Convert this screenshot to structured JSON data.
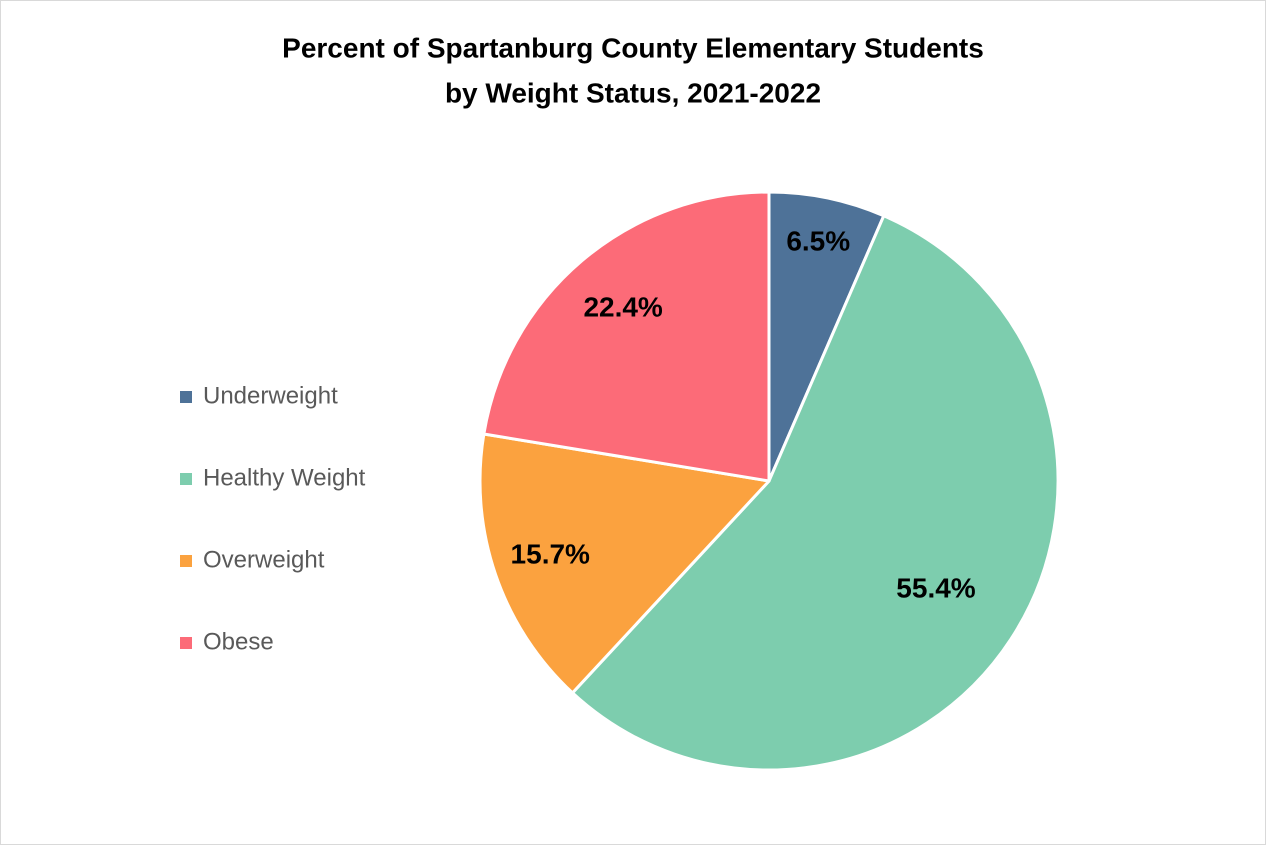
{
  "chart_data": {
    "type": "pie",
    "title": [
      "Percent of Spartanburg County Elementary Students",
      "by Weight Status, 2021-2022"
    ],
    "categories": [
      "Underweight",
      "Healthy Weight",
      "Overweight",
      "Obese"
    ],
    "values": [
      6.5,
      55.4,
      15.7,
      22.4
    ],
    "value_labels": [
      "6.5%",
      "55.4%",
      "15.7%",
      "22.4%"
    ],
    "colors": [
      "#4e7298",
      "#7dcdae",
      "#fba23f",
      "#fc6b78"
    ],
    "legend": "left"
  }
}
